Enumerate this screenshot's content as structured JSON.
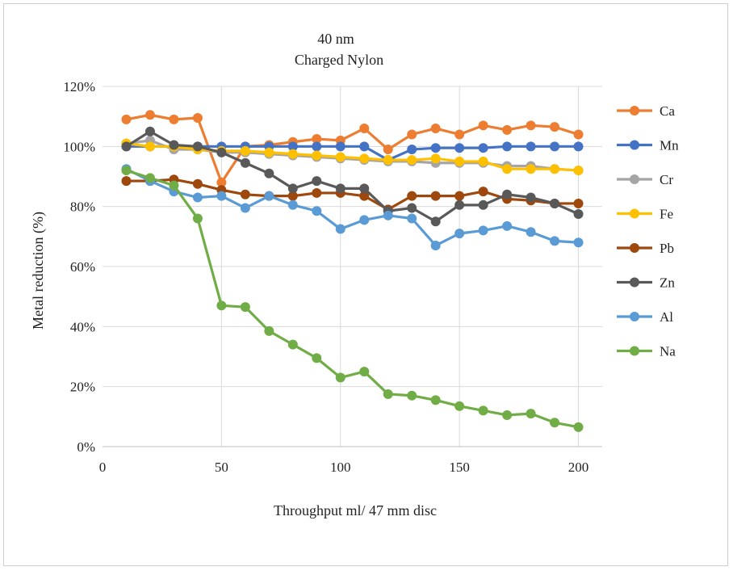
{
  "chart_data": {
    "type": "line",
    "title": "40 nm",
    "subtitle": "Charged Nylon",
    "xlabel": "Throughput ml/ 47 mm disc",
    "ylabel": "Metal reduction (%)",
    "xlim": [
      0,
      210
    ],
    "ylim": [
      0,
      1.2
    ],
    "x_ticks": [
      0,
      50,
      100,
      150,
      200
    ],
    "x_tick_labels": [
      "0",
      "50",
      "100",
      "150",
      "200"
    ],
    "y_ticks": [
      0,
      0.2,
      0.4,
      0.6,
      0.8,
      1.0,
      1.2
    ],
    "y_tick_labels": [
      "0%",
      "20%",
      "40%",
      "60%",
      "80%",
      "100%",
      "120%"
    ],
    "grid": "vertical and horizontal",
    "legend_position": "right",
    "x": [
      10,
      20,
      30,
      40,
      50,
      60,
      70,
      80,
      90,
      100,
      110,
      120,
      130,
      140,
      150,
      160,
      170,
      180,
      190,
      200
    ],
    "series": [
      {
        "name": "Ca",
        "color": "#ED7D31",
        "values": [
          1.09,
          1.105,
          1.09,
          1.095,
          0.88,
          1.0,
          1.005,
          1.015,
          1.025,
          1.02,
          1.06,
          0.99,
          1.04,
          1.06,
          1.04,
          1.07,
          1.055,
          1.07,
          1.065,
          1.04
        ]
      },
      {
        "name": "Mn",
        "color": "#4472C4",
        "values": [
          1.0,
          1.0,
          1.0,
          1.0,
          1.0,
          1.0,
          1.0,
          1.0,
          1.0,
          1.0,
          1.0,
          0.955,
          0.99,
          0.995,
          0.995,
          0.995,
          1.0,
          1.0,
          1.0,
          1.0
        ]
      },
      {
        "name": "Cr",
        "color": "#A5A5A5",
        "values": [
          1.01,
          1.02,
          0.99,
          0.99,
          0.98,
          0.98,
          0.975,
          0.97,
          0.965,
          0.96,
          0.955,
          0.95,
          0.95,
          0.945,
          0.945,
          0.945,
          0.935,
          0.935,
          0.925,
          0.92
        ]
      },
      {
        "name": "Fe",
        "color": "#FFC000",
        "values": [
          1.01,
          1.0,
          1.0,
          0.99,
          0.985,
          0.985,
          0.98,
          0.975,
          0.97,
          0.965,
          0.96,
          0.955,
          0.955,
          0.96,
          0.95,
          0.95,
          0.925,
          0.925,
          0.925,
          0.92
        ]
      },
      {
        "name": "Pb",
        "color": "#9E480E",
        "values": [
          0.885,
          0.885,
          0.89,
          0.875,
          0.855,
          0.84,
          0.835,
          0.835,
          0.845,
          0.845,
          0.835,
          0.79,
          0.835,
          0.835,
          0.835,
          0.85,
          0.825,
          0.82,
          0.81,
          0.81
        ]
      },
      {
        "name": "Zn",
        "color": "#595959",
        "values": [
          1.0,
          1.05,
          1.005,
          1.0,
          0.98,
          0.945,
          0.91,
          0.86,
          0.885,
          0.86,
          0.86,
          0.785,
          0.795,
          0.75,
          0.805,
          0.805,
          0.84,
          0.83,
          0.81,
          0.775
        ]
      },
      {
        "name": "Al",
        "color": "#5B9BD5",
        "values": [
          0.925,
          0.885,
          0.85,
          0.83,
          0.835,
          0.795,
          0.835,
          0.805,
          0.785,
          0.725,
          0.755,
          0.77,
          0.76,
          0.67,
          0.71,
          0.72,
          0.735,
          0.715,
          0.685,
          0.68
        ]
      },
      {
        "name": "Na",
        "color": "#70AD47",
        "values": [
          0.92,
          0.895,
          0.87,
          0.76,
          0.47,
          0.465,
          0.385,
          0.34,
          0.295,
          0.23,
          0.25,
          0.175,
          0.17,
          0.155,
          0.135,
          0.12,
          0.105,
          0.11,
          0.08,
          0.065
        ]
      }
    ]
  }
}
